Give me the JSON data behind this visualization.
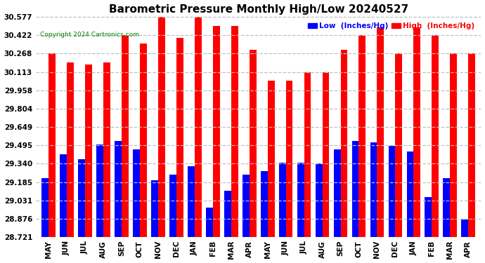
{
  "title": "Barometric Pressure Monthly High/Low 20240527",
  "copyright": "Copyright 2024 Cartronics.com",
  "legend_low": "Low  (Inches/Hg)",
  "legend_high": "High  (Inches/Hg)",
  "months": [
    "MAY",
    "JUN",
    "JUL",
    "AUG",
    "SEP",
    "OCT",
    "NOV",
    "DEC",
    "JAN",
    "FEB",
    "MAR",
    "APR",
    "MAY",
    "JUN",
    "JUL",
    "AUG",
    "SEP",
    "OCT",
    "NOV",
    "DEC",
    "JAN",
    "FEB",
    "MAR",
    "APR"
  ],
  "high_values": [
    30.268,
    30.195,
    30.175,
    30.195,
    30.422,
    30.35,
    30.577,
    30.4,
    30.577,
    30.5,
    30.5,
    30.3,
    30.04,
    30.04,
    30.113,
    30.113,
    30.3,
    30.422,
    30.49,
    30.268,
    30.49,
    30.422,
    30.268,
    30.268
  ],
  "low_values": [
    29.22,
    29.42,
    29.38,
    29.5,
    29.53,
    29.46,
    29.2,
    29.25,
    29.32,
    28.97,
    29.11,
    29.25,
    29.28,
    29.35,
    29.35,
    29.34,
    29.46,
    29.53,
    29.52,
    29.49,
    29.44,
    29.06,
    29.22,
    28.87
  ],
  "high_color": "#ff0000",
  "low_color": "#0000ff",
  "bg_color": "#ffffff",
  "grid_color": "#c0c0c0",
  "yticks": [
    28.721,
    28.876,
    29.031,
    29.185,
    29.34,
    29.495,
    29.649,
    29.804,
    29.958,
    30.113,
    30.268,
    30.422,
    30.577
  ],
  "ymin": 28.721,
  "ymax": 30.577,
  "title_fontsize": 11,
  "tick_fontsize": 7.5,
  "bar_width": 0.38
}
